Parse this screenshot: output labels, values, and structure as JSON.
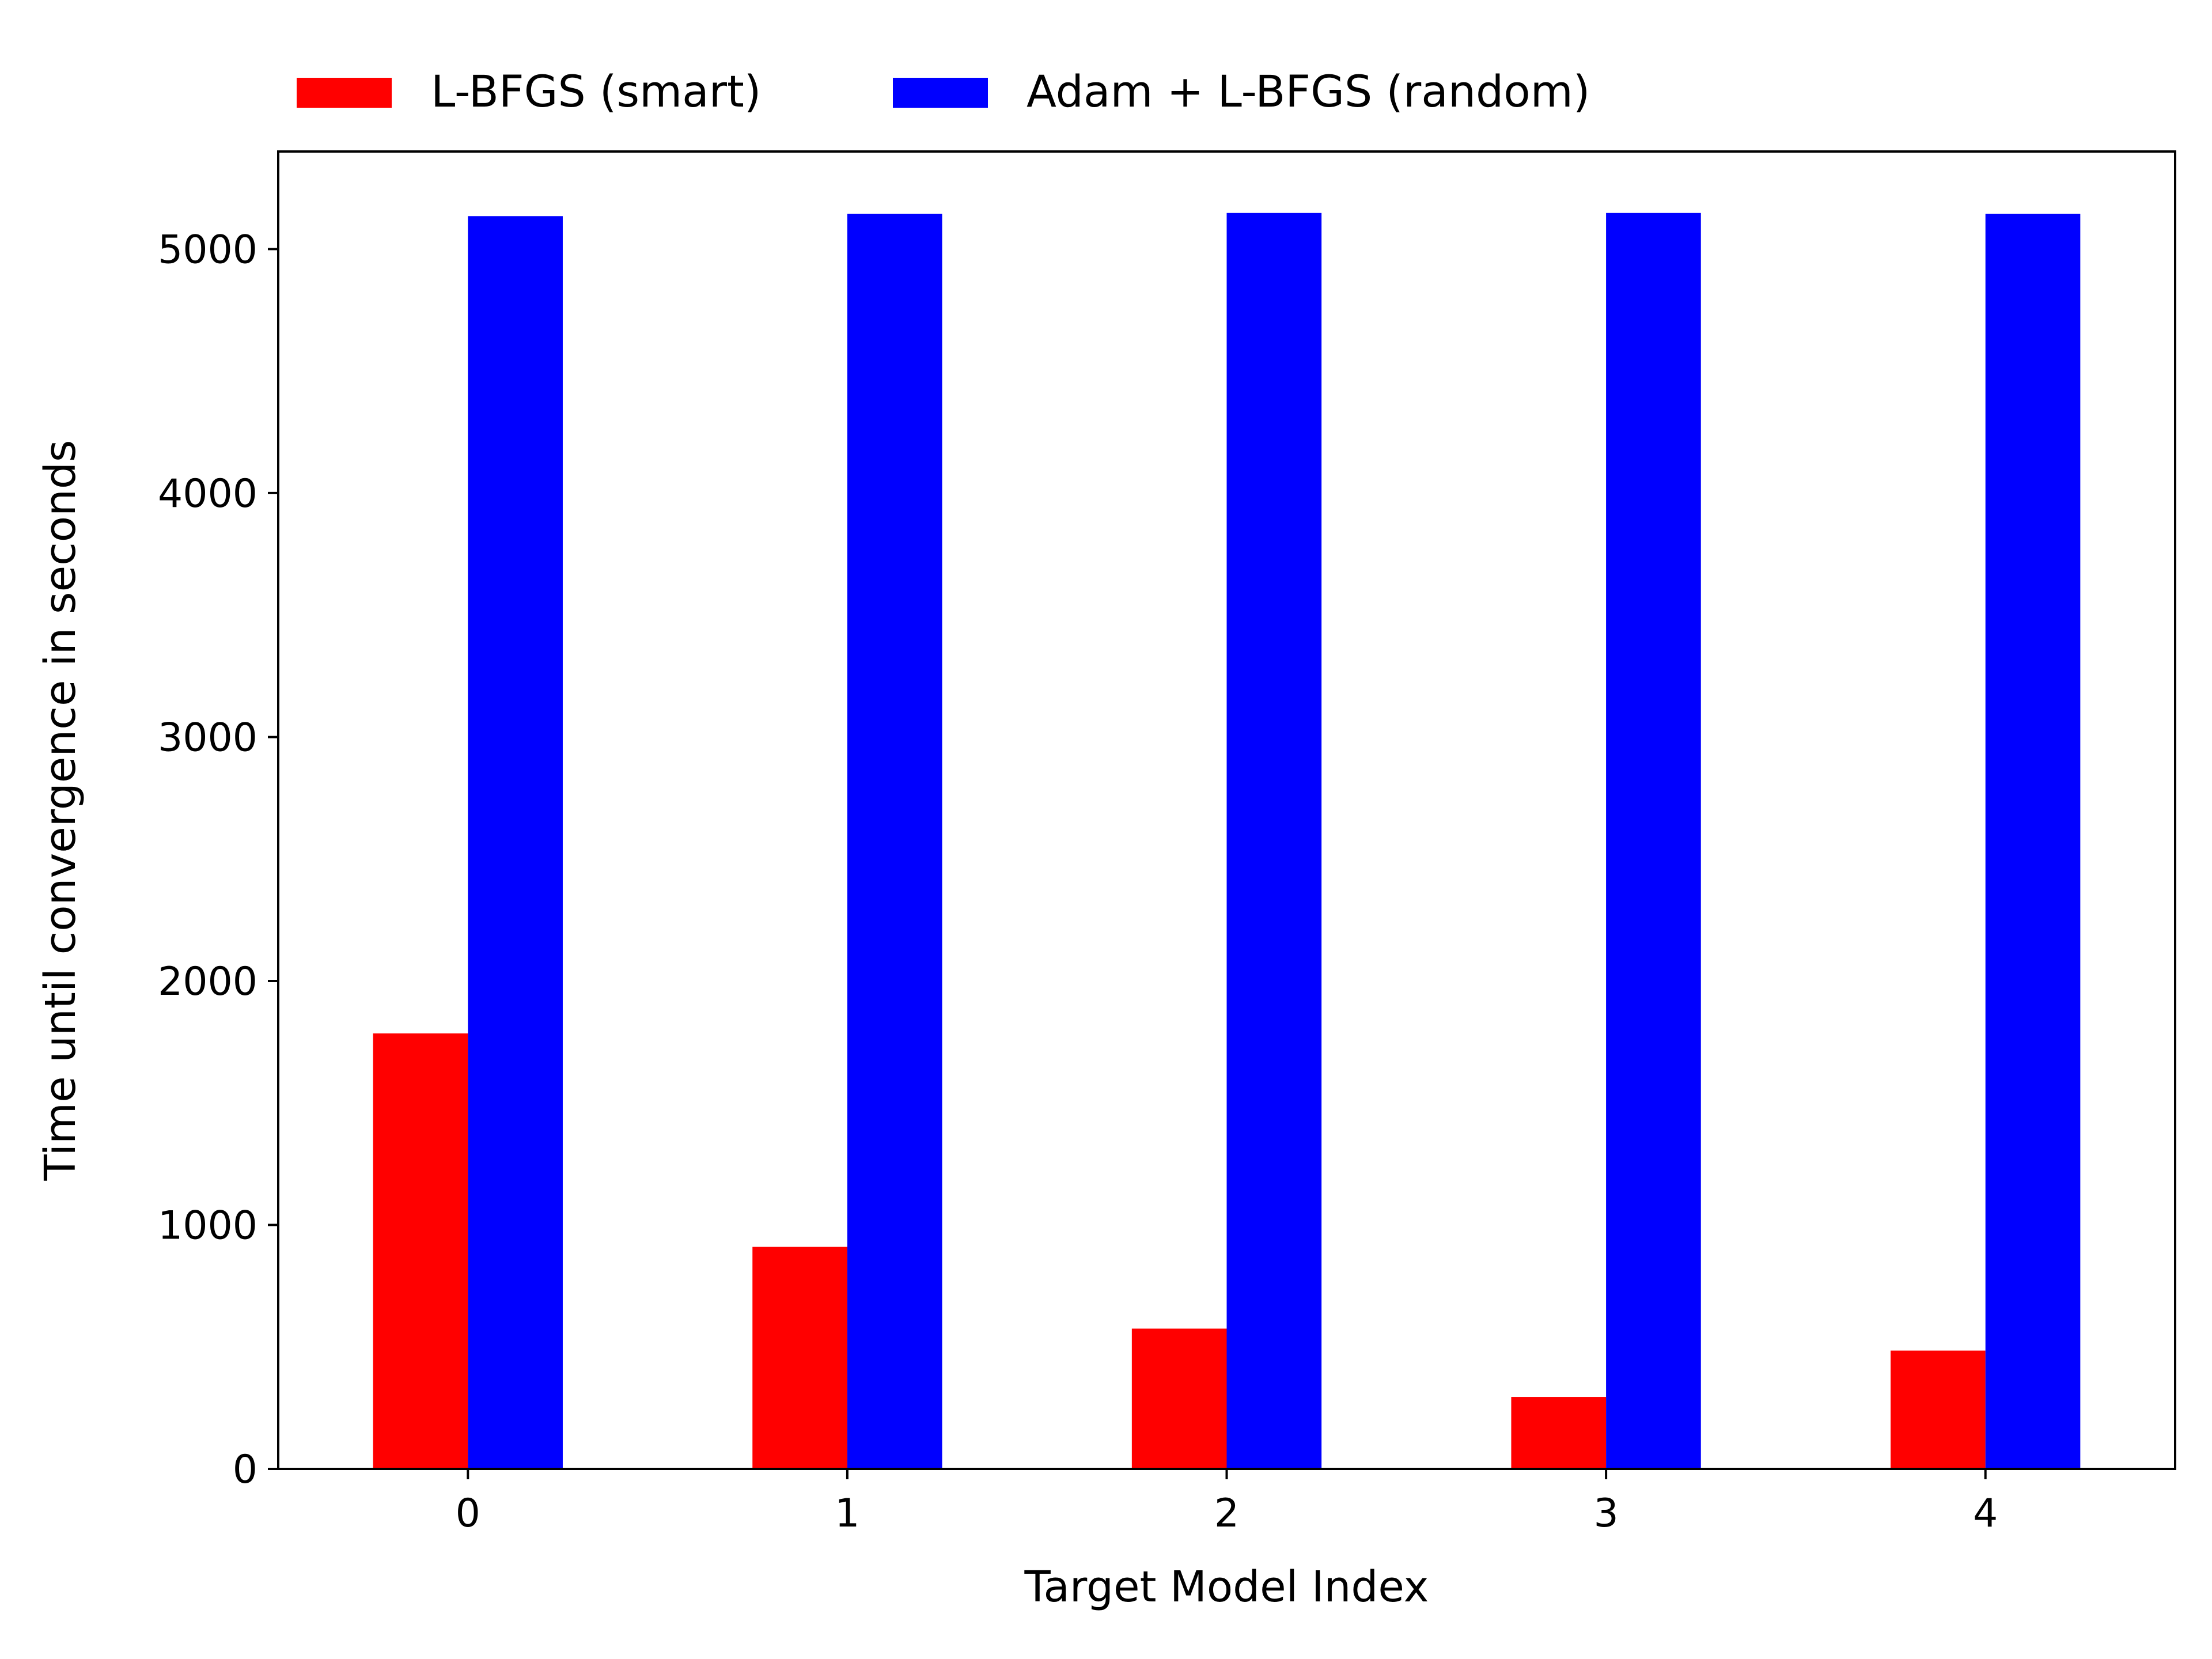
{
  "chart_data": {
    "type": "bar",
    "categories": [
      "0",
      "1",
      "2",
      "3",
      "4"
    ],
    "series": [
      {
        "name": "L-BFGS (smart)",
        "color": "#ff0000",
        "values": [
          1785,
          910,
          575,
          295,
          485
        ]
      },
      {
        "name": "Adam + L-BFGS (random)",
        "color": "#0000ff",
        "values": [
          5135,
          5145,
          5148,
          5148,
          5145
        ]
      }
    ],
    "xlabel": "Target Model Index",
    "ylabel": "Time until convergence in seconds",
    "ylim": [
      0,
      5400
    ],
    "yticks": [
      "0",
      "1000",
      "2000",
      "3000",
      "4000",
      "5000"
    ],
    "grid": false,
    "legend_position": "top-left, above plot"
  }
}
